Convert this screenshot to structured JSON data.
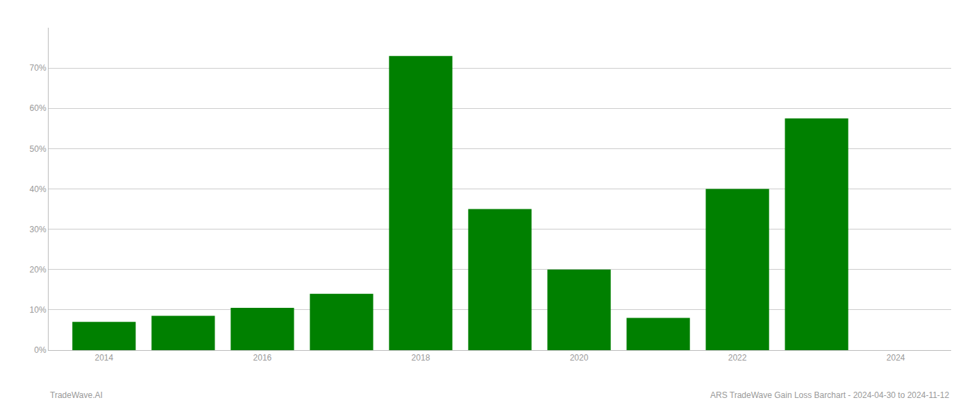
{
  "chart_data": {
    "type": "bar",
    "x": [
      2014,
      2015,
      2016,
      2017,
      2018,
      2019,
      2020,
      2021,
      2022,
      2023
    ],
    "values": [
      0.07,
      0.085,
      0.105,
      0.14,
      0.73,
      0.35,
      0.2,
      0.08,
      0.4,
      0.575
    ],
    "color": "#008000",
    "xlim": [
      2013.3,
      2024.7
    ],
    "xticks": [
      2014,
      2016,
      2018,
      2020,
      2022,
      2024
    ],
    "ylim": [
      0,
      0.8
    ],
    "yticks": [
      {
        "value": 0.0,
        "label": "0%"
      },
      {
        "value": 0.1,
        "label": "10%"
      },
      {
        "value": 0.2,
        "label": "20%"
      },
      {
        "value": 0.3,
        "label": "30%"
      },
      {
        "value": 0.4,
        "label": "40%"
      },
      {
        "value": 0.5,
        "label": "50%"
      },
      {
        "value": 0.6,
        "label": "60%"
      },
      {
        "value": 0.7,
        "label": "70%"
      }
    ],
    "grid": true,
    "annotations": [
      "TradeWave.AI",
      "ARS TradeWave Gain Loss Barchart - 2024-04-30 to 2024-11-12"
    ]
  }
}
